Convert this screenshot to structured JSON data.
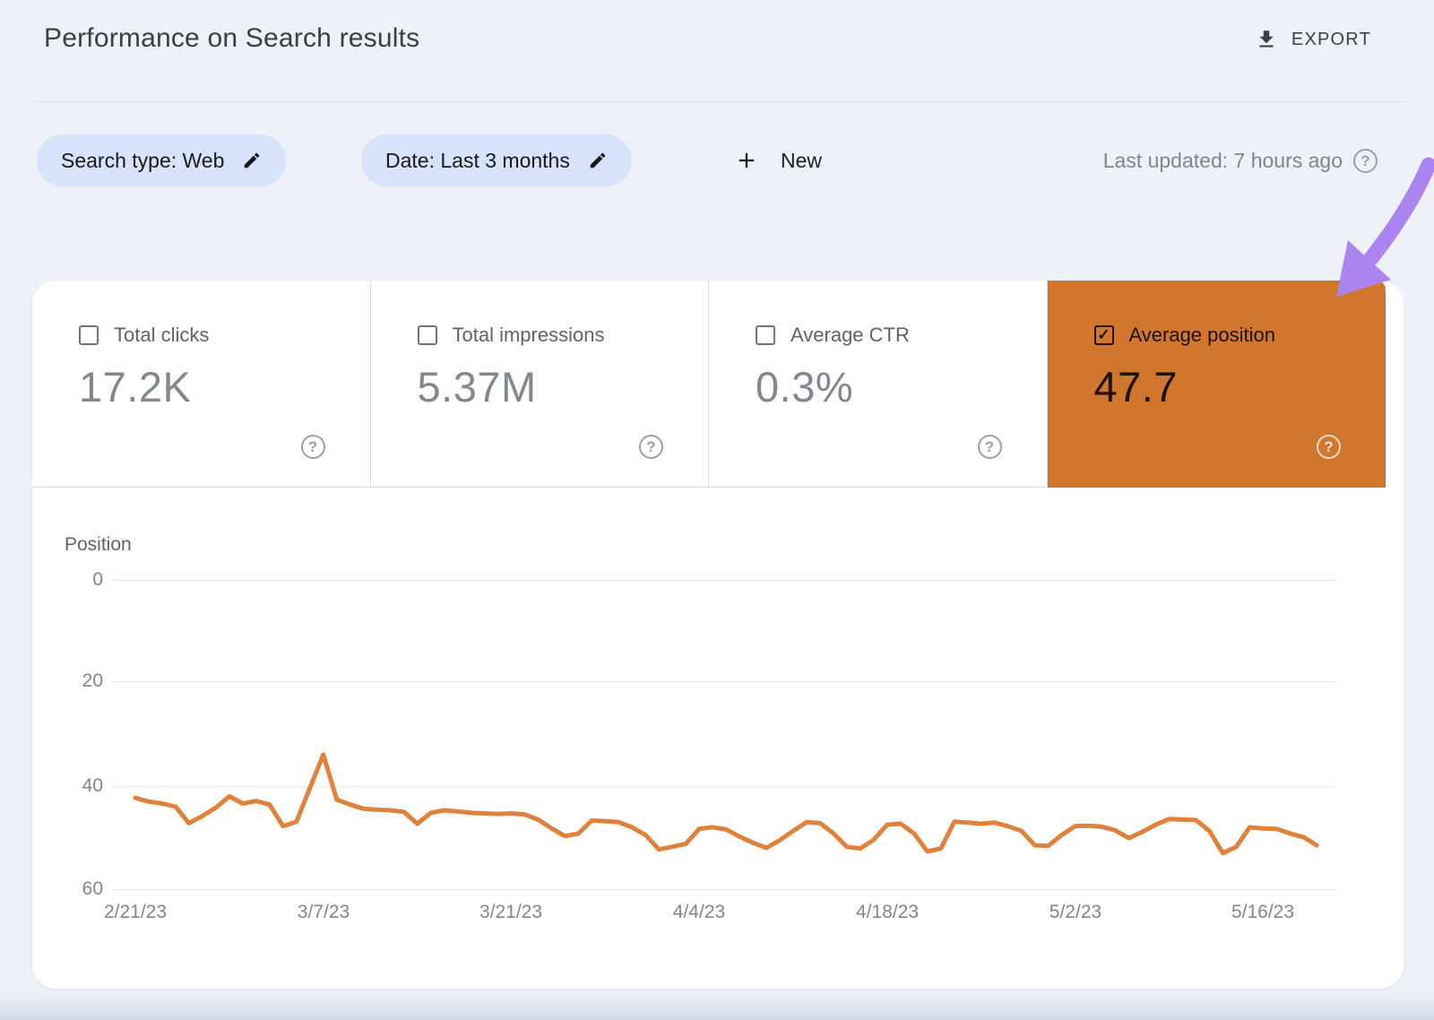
{
  "header": {
    "title": "Performance on Search results",
    "export_label": "EXPORT"
  },
  "filters": {
    "search_type_chip": "Search type: Web",
    "date_chip": "Date: Last 3 months",
    "new_label": "New",
    "last_updated": "Last updated: 7 hours ago"
  },
  "metric_cards": [
    {
      "label": "Total clicks",
      "value": "17.2K",
      "checked": false
    },
    {
      "label": "Total impressions",
      "value": "5.37M",
      "checked": false
    },
    {
      "label": "Average CTR",
      "value": "0.3%",
      "checked": false
    },
    {
      "label": "Average position",
      "value": "47.7",
      "checked": true,
      "highlight_color": "#d1762e"
    }
  ],
  "icons": {
    "help": "?",
    "check": "✓"
  },
  "colors": {
    "accent_orange": "#d1762e",
    "line_orange": "#e0813c",
    "chip_blue": "#d9e2fb",
    "arrow_purple": "#ab84f2"
  },
  "chart_data": {
    "type": "line",
    "title": "Position",
    "ylabel": "Position",
    "y_axis_inverted": true,
    "ylim": [
      0,
      66
    ],
    "y_ticks": [
      "0",
      "20",
      "40",
      "60"
    ],
    "x_tick_labels": [
      "2/21/23",
      "3/7/23",
      "3/21/23",
      "4/4/23",
      "4/18/23",
      "5/2/23",
      "5/16/23"
    ],
    "x_unit": "day",
    "x_start": "2/21/23",
    "x_end": "5/20/23",
    "grid": "horizontal",
    "legend": "none",
    "series": [
      {
        "name": "Average position",
        "color": "#e0813c",
        "values": [
          42.3,
          43.0,
          43.4,
          44.0,
          47.2,
          45.8,
          44.2,
          42.0,
          43.4,
          42.9,
          43.6,
          47.8,
          46.9,
          40.4,
          33.9,
          42.6,
          43.6,
          44.4,
          44.6,
          44.7,
          45.0,
          47.3,
          45.2,
          44.7,
          44.9,
          45.2,
          45.3,
          45.4,
          45.3,
          45.5,
          46.5,
          48.2,
          49.7,
          49.2,
          46.7,
          46.8,
          47.0,
          48.0,
          49.5,
          52.3,
          51.8,
          51.2,
          48.3,
          48.0,
          48.4,
          49.8,
          51.0,
          52.0,
          50.5,
          48.7,
          47.0,
          47.2,
          49.2,
          51.8,
          52.1,
          50.4,
          47.5,
          47.3,
          49.2,
          52.7,
          52.1,
          46.9,
          47.1,
          47.3,
          47.1,
          47.8,
          48.7,
          51.5,
          51.6,
          49.5,
          47.8,
          47.7,
          47.9,
          48.6,
          50.1,
          48.9,
          47.5,
          46.4,
          46.5,
          46.6,
          48.7,
          53.0,
          51.8,
          48.0,
          48.2,
          48.3,
          49.2,
          49.9,
          51.5
        ]
      }
    ]
  }
}
